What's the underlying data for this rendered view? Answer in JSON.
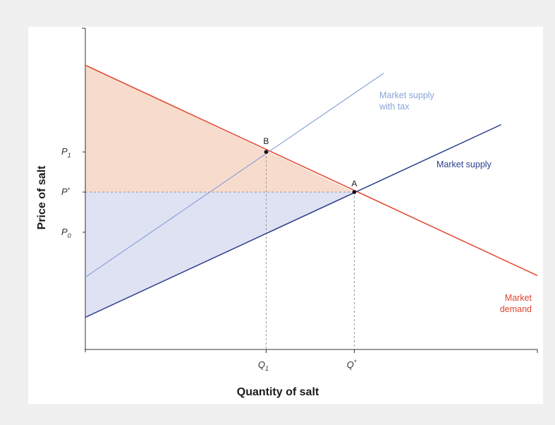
{
  "chart_data": {
    "type": "line",
    "xlabel": "Quantity of salt",
    "ylabel": "Price of salt",
    "xlim": [
      0,
      10
    ],
    "ylim": [
      0,
      10
    ],
    "grid": false,
    "series": [
      {
        "name": "Market demand",
        "label_lines": [
          "Market",
          "demand"
        ],
        "color": "#e0452f",
        "x": [
          0,
          10
        ],
        "y": [
          8.85,
          2.3
        ]
      },
      {
        "name": "Market supply",
        "label_lines": [
          "Market supply"
        ],
        "color": "#2b3d8c",
        "x": [
          0,
          9.2
        ],
        "y": [
          1.0,
          7.0
        ]
      },
      {
        "name": "Market supply with tax",
        "label_lines": [
          "Market supply",
          "with tax"
        ],
        "color": "#8aa2d8",
        "x": [
          0,
          6.6
        ],
        "y": [
          2.25,
          8.6
        ]
      }
    ],
    "points": [
      {
        "label": "A",
        "x": 5.95,
        "y": 4.9
      },
      {
        "label": "B",
        "x": 4.0,
        "y": 6.15
      }
    ],
    "x_ticks": [
      {
        "main": "Q",
        "sub": "1",
        "x": 4.0
      },
      {
        "main": "Q",
        "sup": "*",
        "x": 5.95
      }
    ],
    "y_ticks": [
      {
        "main": "P",
        "sub": "1",
        "y": 6.15
      },
      {
        "main": "P",
        "sup": "*",
        "y": 4.9
      },
      {
        "main": "P",
        "sub": "0",
        "y": 3.65
      }
    ],
    "shaded_regions": [
      {
        "name": "consumer surplus",
        "color": "#f7dccd"
      },
      {
        "name": "producer surplus",
        "color": "#dfe2f3"
      }
    ]
  }
}
